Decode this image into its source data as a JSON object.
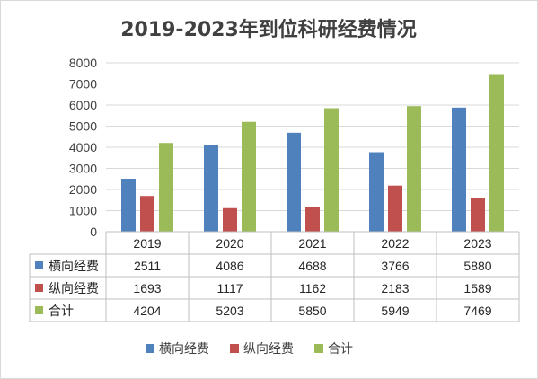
{
  "chart_data": {
    "type": "bar",
    "title": "2019-2023年到位科研经费情况",
    "categories": [
      "2019",
      "2020",
      "2021",
      "2022",
      "2023"
    ],
    "series": [
      {
        "name": "横向经费",
        "color": "#4f81bd",
        "values": [
          2511,
          4086,
          4688,
          3766,
          5880
        ]
      },
      {
        "name": "纵向经费",
        "color": "#c0504d",
        "values": [
          1693,
          1117,
          1162,
          2183,
          1589
        ]
      },
      {
        "name": "合计",
        "color": "#9bbb59",
        "values": [
          4204,
          5203,
          5850,
          5949,
          7469
        ]
      }
    ],
    "ylim": [
      0,
      8000
    ],
    "yticks": [
      0,
      1000,
      2000,
      3000,
      4000,
      5000,
      6000,
      7000,
      8000
    ],
    "grid": true,
    "data_table": true,
    "legend": "bottom"
  }
}
